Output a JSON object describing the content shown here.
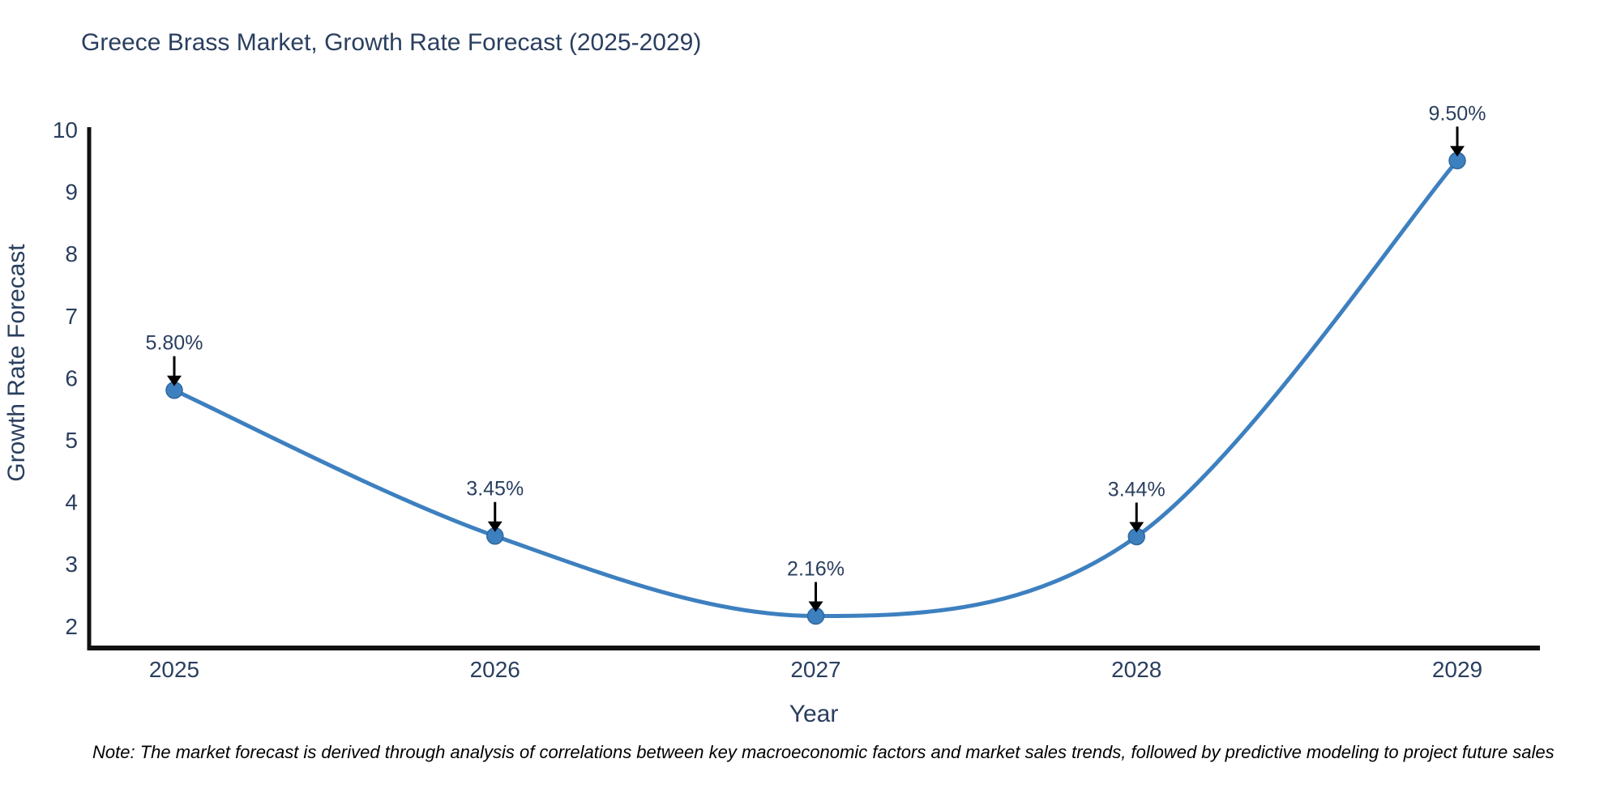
{
  "page": {
    "title": "Greece Brass Market, Growth Rate Forecast (2025-2029)",
    "note": "Note: The market forecast is derived through analysis of correlations between key macroeconomic factors and market sales trends, followed by predictive modeling to project future sales"
  },
  "chart_data": {
    "type": "line",
    "title": "Greece Brass Market, Growth Rate Forecast (2025-2029)",
    "line_shape": "spline",
    "categories": [
      "2025",
      "2026",
      "2027",
      "2028",
      "2029"
    ],
    "values": [
      5.8,
      3.45,
      2.16,
      3.44,
      9.5
    ],
    "point_labels": [
      "5.80%",
      "3.45%",
      "2.16%",
      "3.44%",
      "9.50%"
    ],
    "xlabel": "Year",
    "ylabel": "Growth Rate Forecast",
    "yticks": [
      10,
      9,
      8,
      7,
      6,
      5,
      4,
      3,
      2
    ],
    "ylim": [
      2,
      10
    ],
    "grid": false,
    "legend_position": "none",
    "colors": {
      "line": "#3d80c0",
      "marker_fill": "#3d80c0",
      "marker_edge": "#31689b",
      "axis": "#111111",
      "text": "#2a3f5f",
      "arrow": "#000000",
      "background": "#ffffff"
    }
  }
}
